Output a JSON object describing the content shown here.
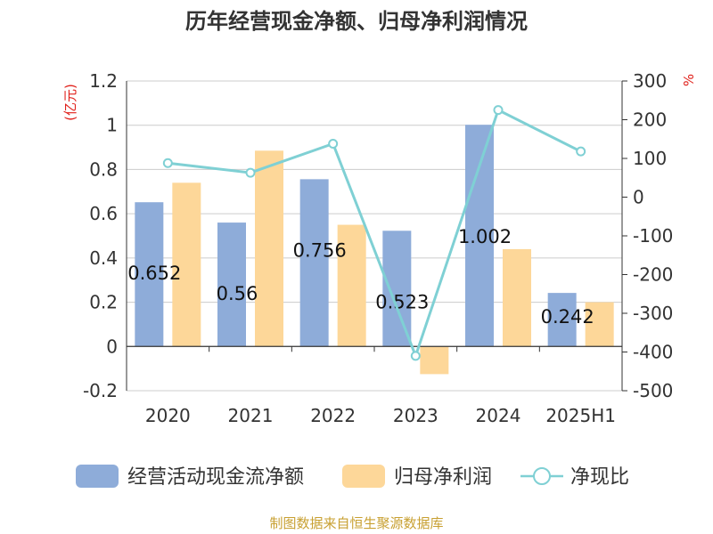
{
  "chart_data": {
    "type": "bar",
    "title": "历年经营现金净额、归母净利润情况",
    "categories": [
      "2020",
      "2021",
      "2022",
      "2023",
      "2024",
      "2025H1"
    ],
    "y_left_label": "(亿元)",
    "y_right_label": "%",
    "y_left_range": [
      -0.2,
      1.2
    ],
    "y_left_ticks": [
      "1.2",
      "1",
      "0.8",
      "0.6",
      "0.4",
      "0.2",
      "0",
      "-0.2"
    ],
    "y_right_range": [
      -500,
      300
    ],
    "y_right_ticks": [
      "300",
      "200",
      "100",
      "0",
      "-100",
      "-200",
      "-300",
      "-400",
      "-500"
    ],
    "grid": true,
    "legend_position": "bottom",
    "series": [
      {
        "name": "经营活动现金流净额",
        "type": "bar",
        "axis": "left",
        "color": "#8eacd9",
        "values": [
          0.652,
          0.56,
          0.756,
          0.523,
          1.002,
          0.242
        ],
        "labels": [
          "0.652",
          "0.56",
          "0.756",
          "0.523",
          "1.002",
          "0.242"
        ]
      },
      {
        "name": "归母净利润",
        "type": "bar",
        "axis": "left",
        "color": "#fdd799",
        "values": [
          0.74,
          0.885,
          0.55,
          -0.125,
          0.44,
          0.2
        ]
      },
      {
        "name": "净现比",
        "type": "line",
        "axis": "right",
        "color": "#7fd0d4",
        "values": [
          88,
          63,
          138,
          -410,
          225,
          118
        ]
      }
    ],
    "source_note": "制图数据来自恒生聚源数据库",
    "source_note_color": "#c8a032"
  }
}
